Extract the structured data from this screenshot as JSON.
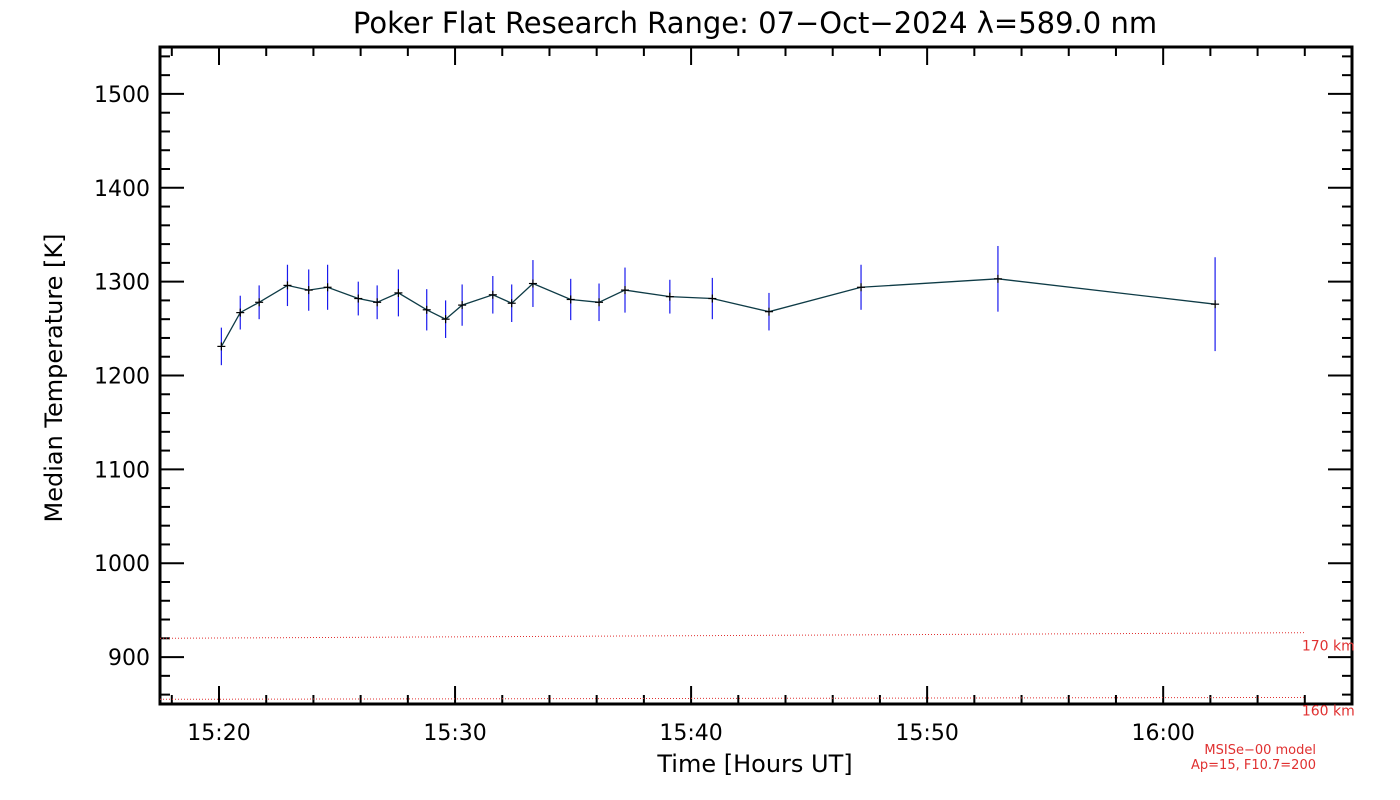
{
  "chart_data": {
    "type": "line",
    "title": "Poker Flat Research Range: 07−Oct−2024 λ=589.0 nm",
    "xlabel": "Time [Hours UT]",
    "ylabel": "Median Temperature [K]",
    "xlim_minutes": [
      917.5,
      968
    ],
    "ylim": [
      850,
      1550
    ],
    "x_ticks": [
      {
        "minutes": 920,
        "label": "15:20"
      },
      {
        "minutes": 930,
        "label": "15:30"
      },
      {
        "minutes": 940,
        "label": "15:40"
      },
      {
        "minutes": 950,
        "label": "15:50"
      },
      {
        "minutes": 960,
        "label": "16:00"
      }
    ],
    "y_ticks": [
      900,
      1000,
      1100,
      1200,
      1300,
      1400,
      1500
    ],
    "series": [
      {
        "name": "Median Temperature",
        "color": "#0e3b46",
        "errorbar_color": "#1a1aee",
        "points": [
          {
            "t": 920.1,
            "y": 1231,
            "err": 20
          },
          {
            "t": 920.9,
            "y": 1267,
            "err": 18
          },
          {
            "t": 921.7,
            "y": 1278,
            "err": 18
          },
          {
            "t": 922.9,
            "y": 1296,
            "err": 22
          },
          {
            "t": 923.8,
            "y": 1291,
            "err": 22
          },
          {
            "t": 924.6,
            "y": 1294,
            "err": 24
          },
          {
            "t": 925.9,
            "y": 1282,
            "err": 18
          },
          {
            "t": 926.7,
            "y": 1278,
            "err": 18
          },
          {
            "t": 927.6,
            "y": 1288,
            "err": 25
          },
          {
            "t": 928.8,
            "y": 1270,
            "err": 22
          },
          {
            "t": 929.6,
            "y": 1260,
            "err": 20
          },
          {
            "t": 930.3,
            "y": 1275,
            "err": 22
          },
          {
            "t": 931.6,
            "y": 1286,
            "err": 20
          },
          {
            "t": 932.4,
            "y": 1277,
            "err": 20
          },
          {
            "t": 933.3,
            "y": 1298,
            "err": 25
          },
          {
            "t": 934.9,
            "y": 1281,
            "err": 22
          },
          {
            "t": 936.1,
            "y": 1278,
            "err": 20
          },
          {
            "t": 937.2,
            "y": 1291,
            "err": 24
          },
          {
            "t": 939.1,
            "y": 1284,
            "err": 18
          },
          {
            "t": 940.9,
            "y": 1282,
            "err": 22
          },
          {
            "t": 943.3,
            "y": 1268,
            "err": 20
          },
          {
            "t": 947.2,
            "y": 1294,
            "err": 24
          },
          {
            "t": 953.0,
            "y": 1303,
            "err": 35
          },
          {
            "t": 962.2,
            "y": 1276,
            "err": 50
          }
        ]
      }
    ],
    "model_lines": [
      {
        "label": "170 km",
        "color": "#e03030",
        "t": [
          917.5,
          966.0
        ],
        "y": [
          920,
          926
        ]
      },
      {
        "label": "160 km",
        "color": "#e03030",
        "t": [
          917.5,
          966.0
        ],
        "y": [
          855,
          857
        ]
      }
    ],
    "annotations": [
      "MSISe−00 model",
      "Ap=15, F10.7=200"
    ]
  }
}
